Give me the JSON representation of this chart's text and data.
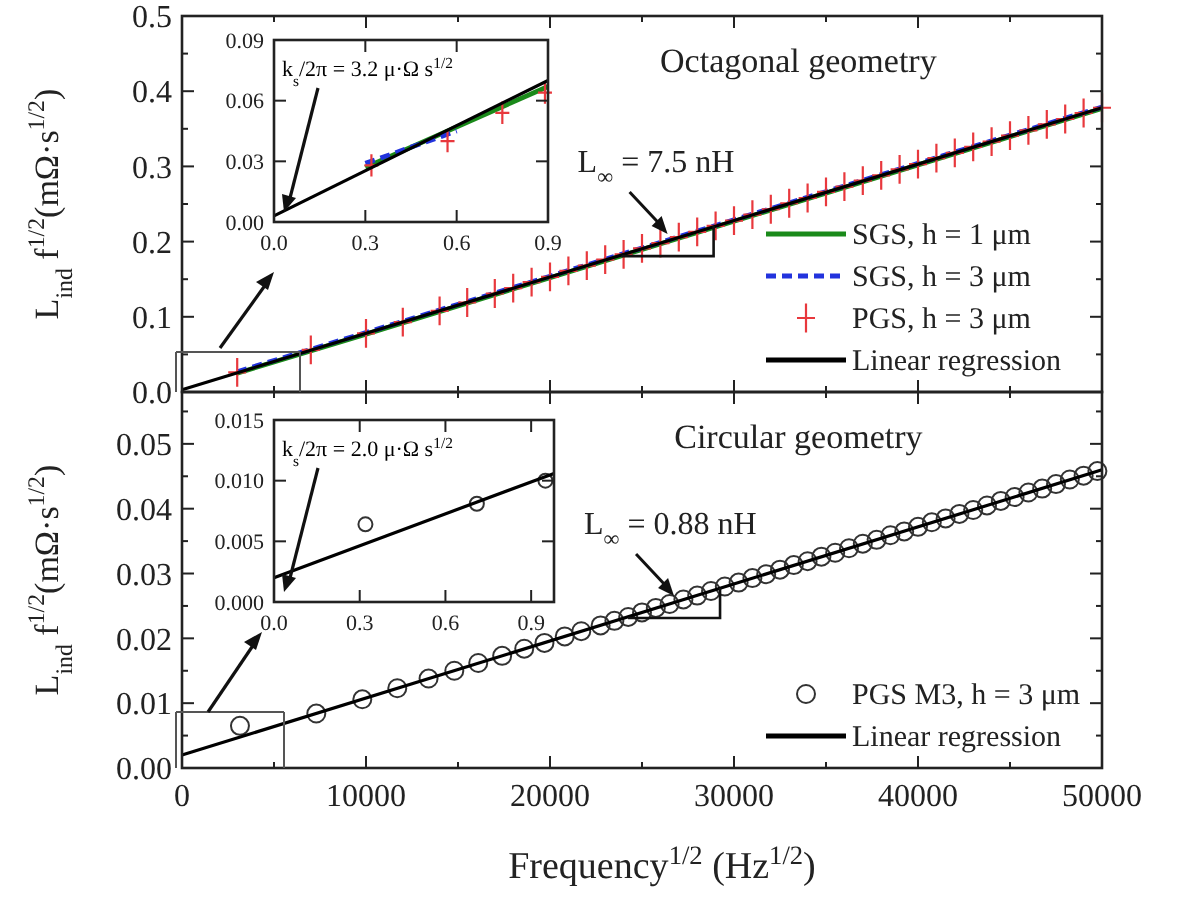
{
  "chart_data": [
    {
      "type": "line",
      "title": "Octagonal geometry",
      "ylabel": "L$_{ind}$ f$^{1/2}$(mΩ·s$^{1/2}$)",
      "xlim": [
        0,
        50000
      ],
      "ylim": [
        0,
        0.5
      ],
      "xticks": [
        0,
        {
          "value": 5000,
          "label": null
        },
        10000,
        {
          "value": 15000,
          "label": null
        },
        20000,
        {
          "value": 25000,
          "label": null
        },
        30000,
        {
          "value": 35000,
          "label": null
        },
        40000,
        {
          "value": 45000,
          "label": null
        },
        50000
      ],
      "yticks": [
        {
          "value": 0,
          "label": "0.0"
        },
        {
          "value": 0.05,
          "label": null
        },
        0.1,
        {
          "value": 0.15,
          "label": null
        },
        0.2,
        {
          "value": 0.25,
          "label": null
        },
        0.3,
        {
          "value": 0.35,
          "label": null
        },
        0.4,
        {
          "value": 0.45,
          "label": null
        },
        0.5
      ],
      "tick_labels": "y",
      "legend": "bottom right",
      "annotations": [
        {
          "text": "L$_{∞}$ = 7.5 nH",
          "x": 26500,
          "y": 0.202
        }
      ],
      "series": [
        {
          "name": "SGS, h = 1 μm",
          "type": "line",
          "color": "#1a8a1a",
          "line_style": "solid",
          "x": [
            3000,
            10000,
            20000,
            30000,
            40000,
            50000
          ],
          "values": [
            0.025,
            0.077,
            0.152,
            0.227,
            0.302,
            0.377
          ]
        },
        {
          "name": "SGS, h = 3 μm",
          "type": "line",
          "color": "#2233dd",
          "line_style": "dashed",
          "x": [
            3000,
            10000,
            20000,
            30000,
            40000,
            50000
          ],
          "values": [
            0.027,
            0.079,
            0.154,
            0.229,
            0.304,
            0.379
          ]
        },
        {
          "name": "PGS, h = 3 μm",
          "type": "scatter",
          "marker": "cross",
          "color": "#e8383d",
          "x": [
            3000,
            7000,
            10000,
            12000,
            14000,
            15500,
            17000,
            18000,
            19000,
            20000,
            21000,
            22000,
            23000,
            24000,
            25000,
            26000,
            27000,
            28000,
            29000,
            30000,
            31000,
            32000,
            33000,
            34000,
            35000,
            36000,
            37000,
            38000,
            39000,
            40000,
            41000,
            42000,
            43000,
            44000,
            45000,
            46000,
            47000,
            48000,
            49000,
            50000
          ],
          "values": [
            0.026,
            0.056,
            0.078,
            0.093,
            0.108,
            0.119,
            0.131,
            0.138,
            0.146,
            0.153,
            0.161,
            0.168,
            0.176,
            0.183,
            0.191,
            0.198,
            0.206,
            0.213,
            0.221,
            0.228,
            0.236,
            0.243,
            0.251,
            0.258,
            0.266,
            0.273,
            0.281,
            0.288,
            0.296,
            0.303,
            0.311,
            0.318,
            0.326,
            0.333,
            0.341,
            0.348,
            0.356,
            0.363,
            0.371,
            0.378
          ]
        },
        {
          "name": "Linear regression",
          "type": "line",
          "color": "#000000",
          "line_style": "solid",
          "x": [
            0,
            50000
          ],
          "values": [
            0.003,
            0.378
          ]
        }
      ]
    },
    {
      "type": "line",
      "xlim": [
        0,
        0.9
      ],
      "ylim": [
        0,
        0.09
      ],
      "xticks": [
        {
          "value": 0,
          "label": "0.0"
        },
        0.3,
        0.6,
        0.9
      ],
      "yticks": [
        {
          "value": 0,
          "label": "0.00"
        },
        0.03,
        0.06,
        0.09
      ],
      "annotations": [
        "k$_{s}$/2π = 3.2 μ·Ω s$^{1/2}$"
      ],
      "series": [
        {
          "type": "line",
          "color": "#1a8a1a",
          "line_style": "solid",
          "x": [
            0.3,
            0.9
          ],
          "values": [
            0.027,
            0.067
          ]
        },
        {
          "type": "line",
          "color": "#2233dd",
          "line_style": "dashed",
          "x": [
            0.3,
            0.6
          ],
          "values": [
            0.029,
            0.045
          ]
        },
        {
          "type": "scatter",
          "marker": "cross",
          "color": "#e8383d",
          "x": [
            0.32,
            0.57,
            0.75,
            0.89
          ],
          "values": [
            0.028,
            0.04,
            0.054,
            0.064
          ]
        },
        {
          "type": "line",
          "color": "#000000",
          "line_style": "solid",
          "x": [
            0,
            0.9
          ],
          "values": [
            0.003,
            0.07
          ]
        }
      ]
    },
    {
      "type": "line",
      "title": "Circular geometry",
      "xlabel": "Frequency$^{1/2}$ (Hz$^{1/2}$)",
      "ylabel": "L$_{ind}$ f$^{1/2}$(mΩ·s$^{1/2}$)",
      "xlim": [
        0,
        50000
      ],
      "ylim": [
        0,
        0.058
      ],
      "xticks": [
        0,
        {
          "value": 5000,
          "label": null
        },
        10000,
        {
          "value": 15000,
          "label": null
        },
        20000,
        {
          "value": 25000,
          "label": null
        },
        30000,
        {
          "value": 35000,
          "label": null
        },
        40000,
        {
          "value": 45000,
          "label": null
        },
        50000
      ],
      "yticks": [
        {
          "value": 0,
          "label": "0.00"
        },
        {
          "value": 0.005,
          "label": null
        },
        {
          "value": 0.01,
          "label": "0.01"
        },
        {
          "value": 0.015,
          "label": null
        },
        {
          "value": 0.02,
          "label": "0.02"
        },
        {
          "value": 0.025,
          "label": null
        },
        {
          "value": 0.03,
          "label": "0.03"
        },
        {
          "value": 0.035,
          "label": null
        },
        {
          "value": 0.04,
          "label": "0.04"
        },
        {
          "value": 0.045,
          "label": null
        },
        {
          "value": 0.05,
          "label": "0.05"
        },
        {
          "value": 0.055,
          "label": null
        }
      ],
      "legend": "bottom right",
      "annotations": [
        {
          "text": "L$_{∞}$ = 0.88 nH",
          "x": 26850,
          "y": 0.0256
        }
      ],
      "series": [
        {
          "name": "PGS M3, h = 3 μm",
          "type": "scatter",
          "marker": "circle",
          "color": "#333333",
          "x": [
            3150,
            7300,
            9800,
            11700,
            13400,
            14800,
            16100,
            17400,
            18600,
            19700,
            20800,
            21700,
            22750,
            23500,
            24250,
            25000,
            25750,
            26500,
            27250,
            28000,
            28750,
            29500,
            30250,
            31000,
            31750,
            32500,
            33250,
            34000,
            34750,
            35500,
            36250,
            37000,
            37750,
            38500,
            39250,
            40000,
            40750,
            41500,
            42250,
            43000,
            43750,
            44500,
            45250,
            46000,
            46750,
            47500,
            48250,
            49000,
            49750
          ],
          "values": [
            0.0065,
            0.0084,
            0.0106,
            0.0123,
            0.0138,
            0.015,
            0.0162,
            0.0173,
            0.0184,
            0.0193,
            0.0203,
            0.0211,
            0.022,
            0.0227,
            0.0233,
            0.024,
            0.0247,
            0.0253,
            0.026,
            0.0266,
            0.0273,
            0.028,
            0.0286,
            0.0293,
            0.0299,
            0.0306,
            0.0313,
            0.0319,
            0.0326,
            0.0332,
            0.0339,
            0.0346,
            0.0352,
            0.0359,
            0.0365,
            0.0372,
            0.0379,
            0.0385,
            0.0392,
            0.0398,
            0.0405,
            0.0412,
            0.0418,
            0.0425,
            0.0431,
            0.0438,
            0.0445,
            0.0451,
            0.0458
          ]
        },
        {
          "name": "Linear regression",
          "type": "line",
          "color": "#000000",
          "line_style": "solid",
          "x": [
            0,
            50000
          ],
          "values": [
            0.002,
            0.046
          ]
        }
      ]
    },
    {
      "type": "line",
      "xlim": [
        0,
        0.98
      ],
      "ylim": [
        0,
        0.015
      ],
      "xticks": [
        {
          "value": 0,
          "label": "0.0"
        },
        0.3,
        0.6,
        0.9
      ],
      "yticks": [
        {
          "value": 0,
          "label": "0.000"
        },
        {
          "value": 0.005,
          "label": "0.005"
        },
        {
          "value": 0.01,
          "label": "0.010"
        },
        {
          "value": 0.015,
          "label": "0.015"
        }
      ],
      "annotations": [
        "k$_{s}$/2π = 2.0 μ·Ω s$^{1/2}$"
      ],
      "series": [
        {
          "type": "scatter",
          "marker": "circle",
          "color": "#333333",
          "x": [
            0.32,
            0.71,
            0.95
          ],
          "values": [
            0.0064,
            0.0081,
            0.01
          ]
        },
        {
          "type": "line",
          "color": "#000000",
          "line_style": "solid",
          "x": [
            0,
            0.98
          ],
          "values": [
            0.002,
            0.0106
          ]
        }
      ]
    }
  ]
}
